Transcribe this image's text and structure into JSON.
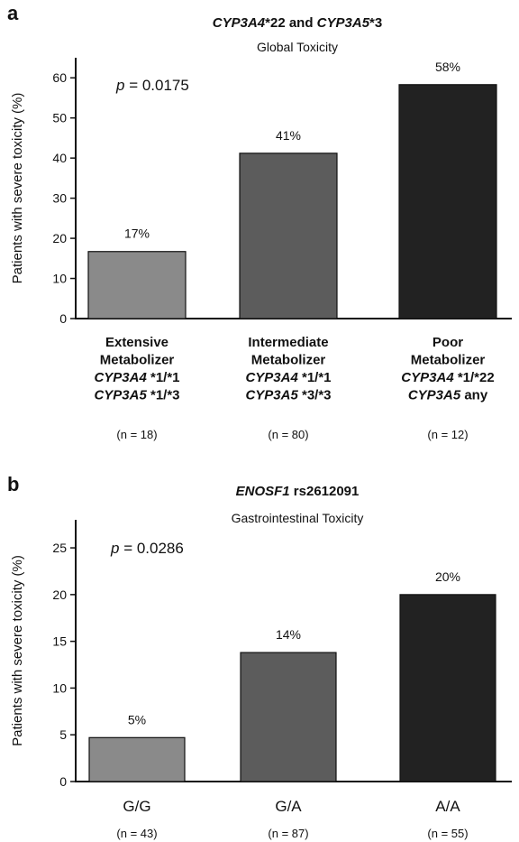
{
  "chart_data": [
    {
      "type": "bar",
      "panel": "a",
      "title_parts": [
        {
          "text": "CYP3A4",
          "italic": true
        },
        {
          "text": "*22 and ",
          "italic": false
        },
        {
          "text": "CYP3A5",
          "italic": true
        },
        {
          "text": "*3",
          "italic": false
        }
      ],
      "subtitle": "Global Toxicity",
      "p_prefix": "p",
      "p_value_text": " = 0.0175",
      "ylabel": "Patients with severe toxicity (%)",
      "ylim": [
        0,
        65
      ],
      "yticks": [
        0,
        10,
        20,
        30,
        40,
        50,
        60
      ],
      "categories": [
        "Extensive Metabolizer",
        "Intermediate Metabolizer",
        "Poor Metabolizer"
      ],
      "category_lines": [
        [
          [
            {
              "text": "Extensive",
              "italic": false
            }
          ],
          [
            {
              "text": "Metabolizer",
              "italic": false
            }
          ],
          [
            {
              "text": "CYP3A4",
              "italic": true
            },
            {
              "text": " *1/*1",
              "italic": false
            }
          ],
          [
            {
              "text": "CYP3A5",
              "italic": true
            },
            {
              "text": " *1/*3",
              "italic": false
            }
          ]
        ],
        [
          [
            {
              "text": "Intermediate",
              "italic": false
            }
          ],
          [
            {
              "text": "Metabolizer",
              "italic": false
            }
          ],
          [
            {
              "text": "CYP3A4",
              "italic": true
            },
            {
              "text": " *1/*1",
              "italic": false
            }
          ],
          [
            {
              "text": "CYP3A5",
              "italic": true
            },
            {
              "text": " *3/*3",
              "italic": false
            }
          ]
        ],
        [
          [
            {
              "text": "Poor",
              "italic": false
            }
          ],
          [
            {
              "text": "Metabolizer",
              "italic": false
            }
          ],
          [
            {
              "text": "CYP3A4",
              "italic": true
            },
            {
              "text": " *1/*22",
              "italic": false
            }
          ],
          [
            {
              "text": "CYP3A5",
              "italic": true
            },
            {
              "text": " any",
              "italic": false
            }
          ]
        ]
      ],
      "values": [
        16.7,
        41.2,
        58.3
      ],
      "value_labels": [
        "17%",
        "41%",
        "58%"
      ],
      "n_labels": [
        "(n = 18)",
        "(n = 80)",
        "(n = 12)"
      ],
      "colors": [
        "#8a8a8a",
        "#5c5c5c",
        "#222222"
      ]
    },
    {
      "type": "bar",
      "panel": "b",
      "title_parts": [
        {
          "text": "ENOSF1",
          "italic": true
        },
        {
          "text": " rs2612091",
          "italic": false
        }
      ],
      "subtitle": "Gastrointestinal Toxicity",
      "p_prefix": "p",
      "p_value_text": " = 0.0286",
      "ylabel": "Patients with severe toxicity (%)",
      "ylim": [
        0,
        28
      ],
      "yticks": [
        0,
        5,
        10,
        15,
        20,
        25
      ],
      "categories": [
        "G/G",
        "G/A",
        "A/A"
      ],
      "values": [
        4.7,
        13.8,
        20.0
      ],
      "value_labels": [
        "5%",
        "14%",
        "20%"
      ],
      "n_labels": [
        "(n = 43)",
        "(n = 87)",
        "(n = 55)"
      ],
      "colors": [
        "#8a8a8a",
        "#5c5c5c",
        "#222222"
      ]
    }
  ],
  "panels": [
    "a",
    "b"
  ]
}
